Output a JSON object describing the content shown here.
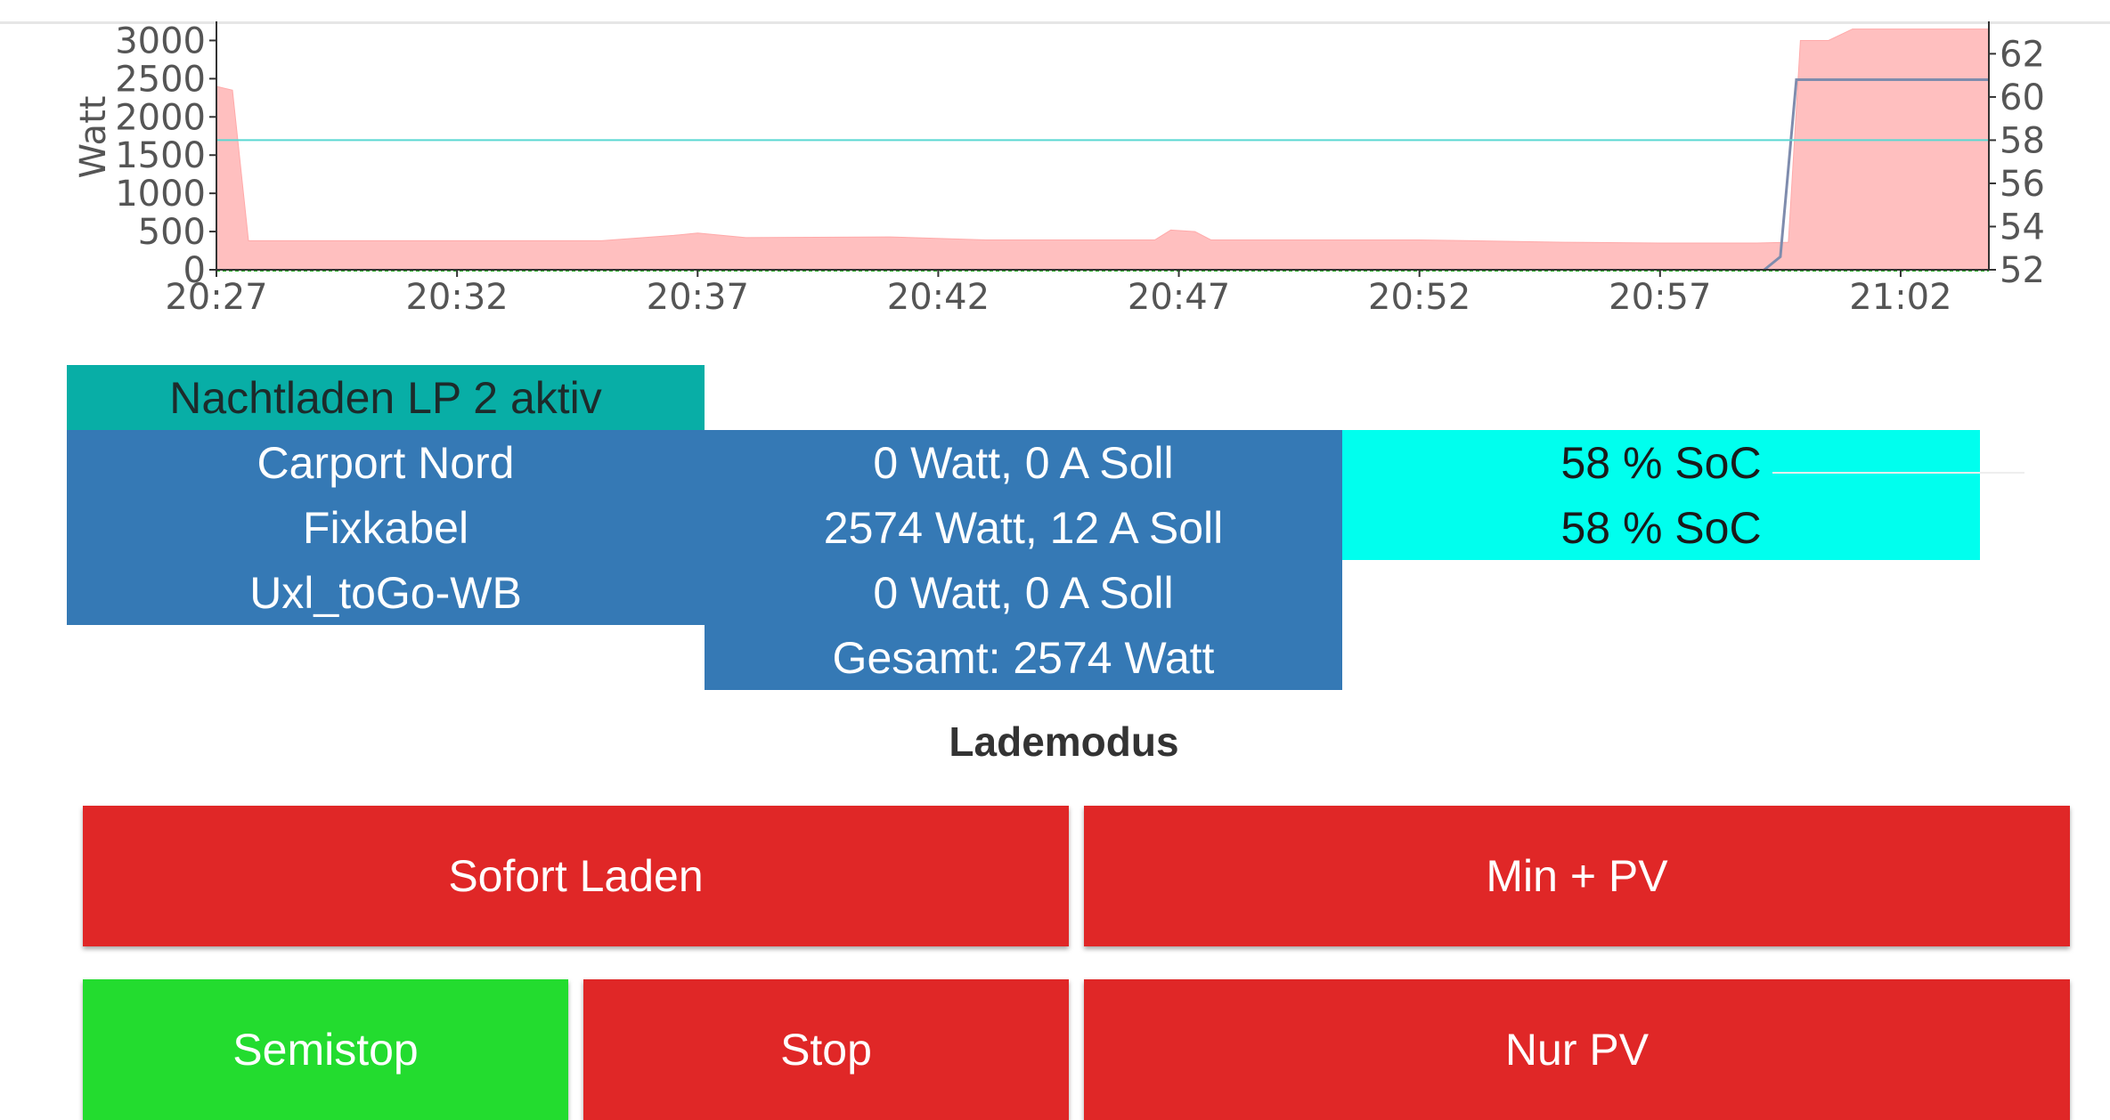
{
  "colors": {
    "red": "#e02727",
    "green": "#23dc2f",
    "blue": "#3579b5",
    "teal": "#08aea6",
    "cyan": "#00ffee",
    "area_fill": "#ffbfbf",
    "soc_line": "#7f8cad",
    "threshold_line": "#5ad8d2"
  },
  "chart_data": {
    "type": "area",
    "ylabel": "Watt",
    "x_ticks": [
      "20:27",
      "20:32",
      "20:37",
      "20:42",
      "20:47",
      "20:52",
      "20:57",
      "21:02"
    ],
    "y_ticks_left": [
      0,
      500,
      1000,
      1500,
      2000,
      2500,
      3000
    ],
    "y_ticks_right": [
      52,
      54,
      56,
      58,
      60,
      62
    ],
    "ylim": [
      0,
      3250
    ],
    "ylim_right": [
      52,
      63.5
    ],
    "grid": false,
    "series": [
      {
        "axis": "left",
        "style": "area",
        "x": [
          "20:27:00",
          "20:27:20",
          "20:27:40",
          "20:30:00",
          "20:35:00",
          "20:36:30",
          "20:37:00",
          "20:38:00",
          "20:41:00",
          "20:43:00",
          "20:46:30",
          "20:46:50",
          "20:47:20",
          "20:47:40",
          "20:52:00",
          "20:55:00",
          "20:57:00",
          "20:59:00",
          "20:59:40",
          "20:59:55",
          "21:00:30",
          "21:01:00",
          "21:03:50"
        ],
        "values": [
          2400,
          2350,
          380,
          380,
          380,
          450,
          480,
          420,
          430,
          390,
          390,
          520,
          500,
          390,
          390,
          360,
          350,
          350,
          360,
          3000,
          3000,
          3150,
          3150
        ]
      },
      {
        "axis": "right",
        "style": "line",
        "x": [
          "20:59:10",
          "20:59:30",
          "20:59:50",
          "21:03:50"
        ],
        "values": [
          52,
          52.6,
          60.8,
          60.8
        ]
      },
      {
        "axis": "right",
        "style": "line",
        "x": [
          "20:27:00",
          "21:03:50"
        ],
        "values": [
          58,
          58
        ]
      }
    ]
  },
  "status": {
    "mode_banner": "Nachtladen LP 2 aktiv"
  },
  "chargepoints": [
    {
      "name": "Carport Nord",
      "power": "0 Watt, 0 A Soll",
      "soc": "58 % SoC"
    },
    {
      "name": "Fixkabel",
      "power": "2574 Watt, 12 A Soll",
      "soc": "58 % SoC"
    },
    {
      "name": "Uxl_toGo-WB",
      "power": "0 Watt, 0 A Soll"
    }
  ],
  "total": "Gesamt: 2574 Watt",
  "lademodus": {
    "title": "Lademodus",
    "buttons": {
      "sofort": "Sofort Laden",
      "minpv": "Min + PV",
      "semistop": "Semistop",
      "stop": "Stop",
      "nurpv": "Nur PV"
    }
  }
}
